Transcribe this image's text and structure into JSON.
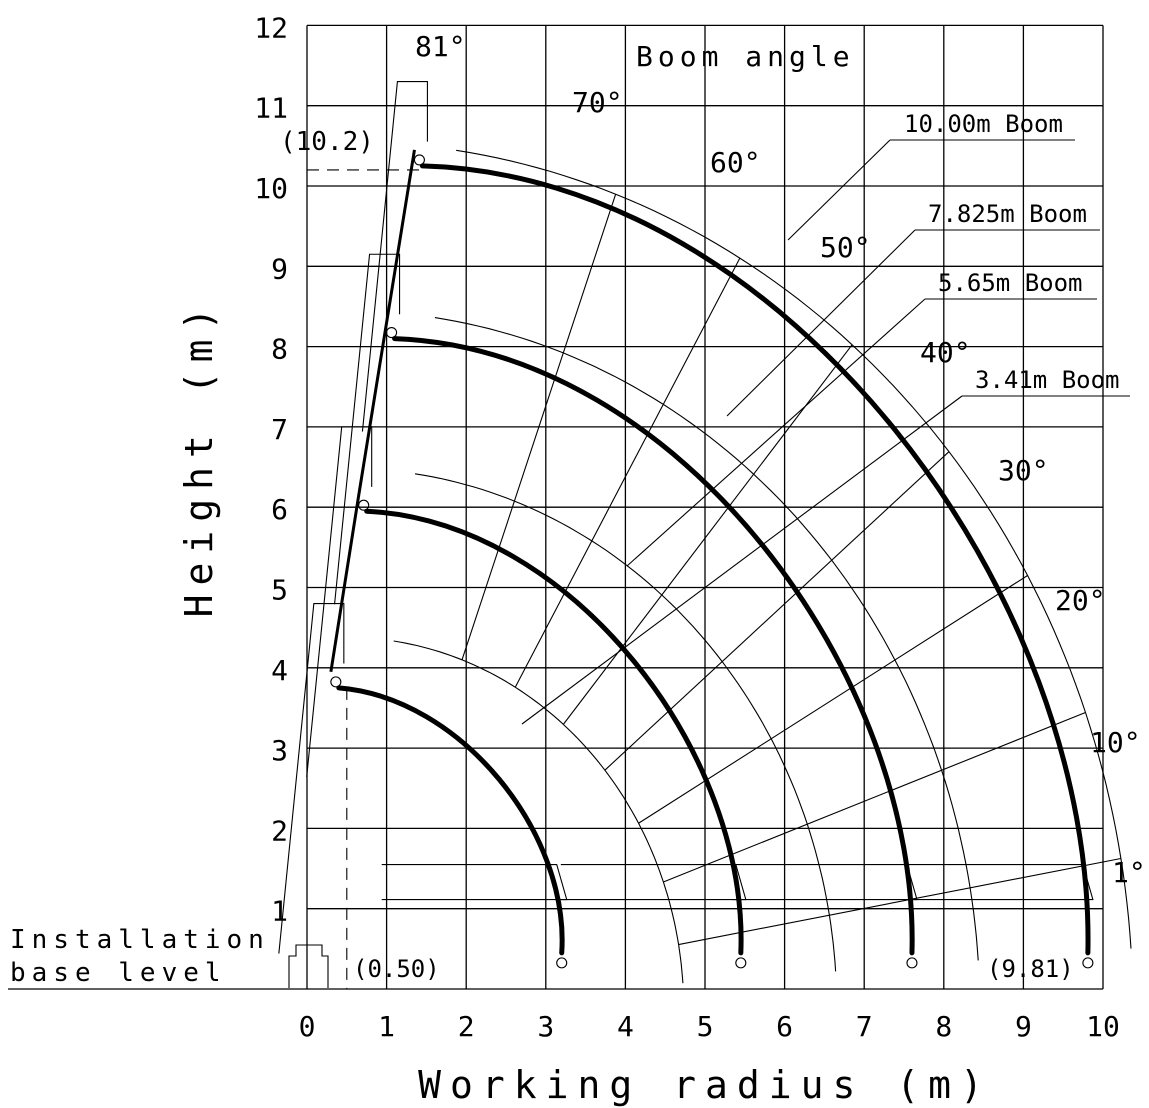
{
  "chart_data": {
    "type": "diagram",
    "xlabel": "Working radius (m)",
    "ylabel": "Height (m)",
    "xlim": [
      0,
      10
    ],
    "ylim": [
      0,
      12
    ],
    "x_ticks": [
      "0",
      "1",
      "2",
      "3",
      "4",
      "5",
      "6",
      "7",
      "8",
      "9",
      "10"
    ],
    "y_ticks": [
      "1",
      "2",
      "3",
      "4",
      "5",
      "6",
      "7",
      "8",
      "9",
      "10",
      "11",
      "12"
    ],
    "base_label_line1": "Installation",
    "base_label_line2": "base level",
    "boom_angle_title": "Boom angle",
    "angle_labels": [
      {
        "text": "81°",
        "deg": 81
      },
      {
        "text": "70°",
        "deg": 70
      },
      {
        "text": "60°",
        "deg": 60
      },
      {
        "text": "50°",
        "deg": 50
      },
      {
        "text": "40°",
        "deg": 40
      },
      {
        "text": "30°",
        "deg": 30
      },
      {
        "text": "20°",
        "deg": 20
      },
      {
        "text": "10°",
        "deg": 10
      },
      {
        "text": "1°",
        "deg": 1
      }
    ],
    "booms": [
      {
        "name": "10.00m Boom",
        "tip_x": 1.45,
        "tip_y": 10.25,
        "end_x": 9.81,
        "end_y": 0.45
      },
      {
        "name": "7.825m Boom",
        "tip_x": 1.1,
        "tip_y": 8.1,
        "end_x": 7.6,
        "end_y": 0.45
      },
      {
        "name": "5.65m Boom",
        "tip_x": 0.75,
        "tip_y": 5.95,
        "end_x": 5.45,
        "end_y": 0.45
      },
      {
        "name": "3.41m Boom",
        "tip_x": 0.4,
        "tip_y": 3.75,
        "end_x": 3.2,
        "end_y": 0.45
      }
    ],
    "annotations": [
      {
        "text": "(10.2)",
        "x": 0,
        "y": 10.2
      },
      {
        "text": "(0.50)",
        "x": 0.5,
        "y": 0
      },
      {
        "text": "(9.81)",
        "x": 9.81,
        "y": 0
      }
    ],
    "grid": true
  }
}
